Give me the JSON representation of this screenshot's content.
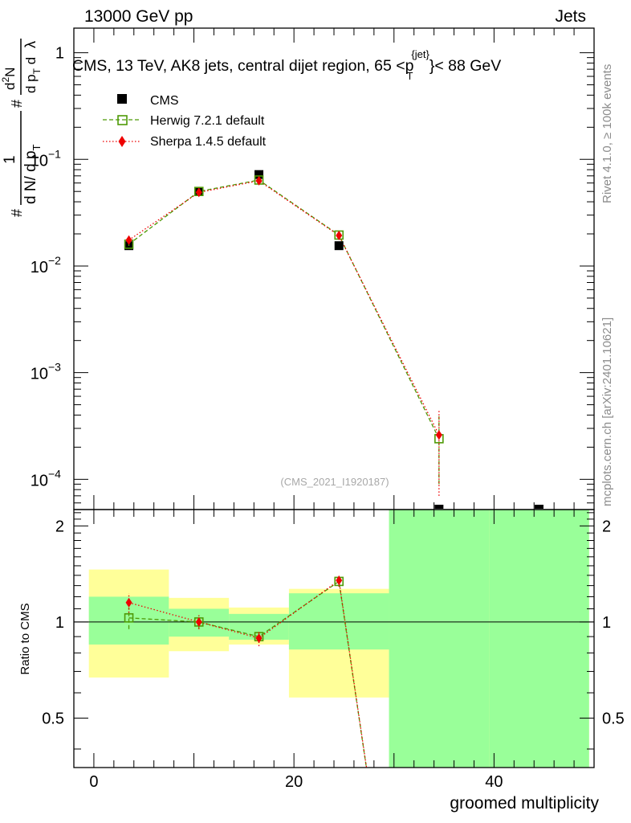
{
  "header": {
    "left": "13000 GeV pp",
    "right": "Jets"
  },
  "side_labels": {
    "top": "Rivet 4.1.0, ≥ 100k events",
    "bottom": "mcplots.cern.ch [arXiv:2401.10621]"
  },
  "colors": {
    "cms": "#000000",
    "herwig": "#4e9a06",
    "sherpa": "#ee0000",
    "band_inner": "#99ff99",
    "band_outer": "#ffff99"
  },
  "chart_data": {
    "type": "line",
    "title": "CMS, 13 TeV, AK8 jets, central dijet region, 65 <p",
    "title_sup": "{jet}",
    "title_sub": "T",
    "title_tail": "}< 88 GeV",
    "reference": "(CMS_2021_I1920187)",
    "ylabel_main": {
      "prefix": "#",
      "frac1_num": "1",
      "frac1_den": "d N/ d p",
      "frac1_den_sub": "T",
      "mid": "#",
      "frac2_num": "d",
      "frac2_num_sup": "2",
      "frac2_num_tail": "N",
      "frac2_den": "d p",
      "frac2_den_sub": "T",
      "frac2_den_tail": " d",
      "lambda": "λ"
    },
    "ylabel_ratio": "Ratio to CMS",
    "xlabel": "groomed multiplicity",
    "xlim": [
      -2,
      50
    ],
    "ylim_main": [
      5.2e-05,
      1.7
    ],
    "ylim_ratio": [
      0.35,
      2.25
    ],
    "y_ticks_main": [
      {
        "value": 1,
        "base": "1",
        "exp": ""
      },
      {
        "value": 0.1,
        "base": "10",
        "exp": "−1"
      },
      {
        "value": 0.01,
        "base": "10",
        "exp": "−2"
      },
      {
        "value": 0.001,
        "base": "10",
        "exp": "−3"
      },
      {
        "value": 0.0001,
        "base": "10",
        "exp": "−4"
      }
    ],
    "y_ticks_ratio": [
      {
        "value": 2,
        "label": "2"
      },
      {
        "value": 1,
        "label": "1"
      },
      {
        "value": 0.5,
        "label": "0.5"
      }
    ],
    "x_ticks": [
      {
        "value": 0,
        "label": "0"
      },
      {
        "value": 20,
        "label": "20"
      },
      {
        "value": 40,
        "label": "40"
      }
    ],
    "bins": [
      {
        "lo": -0.5,
        "hi": 7.5,
        "x": 3.5
      },
      {
        "lo": 7.5,
        "hi": 13.5,
        "x": 10.5
      },
      {
        "lo": 13.5,
        "hi": 19.5,
        "x": 16.5
      },
      {
        "lo": 19.5,
        "hi": 29.5,
        "x": 24.5
      },
      {
        "lo": 29.5,
        "hi": 39.5,
        "x": 34.5
      },
      {
        "lo": 39.5,
        "hi": 49.5,
        "x": 44.5
      }
    ],
    "series": [
      {
        "name": "CMS",
        "values": [
          0.0155,
          0.05,
          0.072,
          0.0155,
          5.2e-05,
          5.2e-05
        ]
      },
      {
        "name": "Herwig 7.2.1 default",
        "values": [
          0.016,
          0.05,
          0.064,
          0.0195,
          0.00024,
          null
        ],
        "err_lo": [
          0.0006,
          0.001,
          0.002,
          0.0007,
          0.00015,
          null
        ],
        "err_hi": [
          0.0006,
          0.001,
          0.002,
          0.0007,
          0.00015,
          null
        ],
        "ratio": [
          1.03,
          1.0,
          0.9,
          1.34,
          0.0,
          null
        ],
        "ratio_err": [
          0.08,
          0.05,
          0.04,
          0.04,
          0.0,
          null
        ]
      },
      {
        "name": "Sherpa 1.4.5 default",
        "values": [
          0.0175,
          0.049,
          0.063,
          0.0193,
          0.00026,
          null
        ],
        "err_lo": [
          0.0008,
          0.0012,
          0.002,
          0.0008,
          0.00019,
          null
        ],
        "err_hi": [
          0.0008,
          0.0012,
          0.002,
          0.0008,
          0.00019,
          null
        ],
        "ratio": [
          1.15,
          1.0,
          0.89,
          1.35,
          0.0,
          null
        ],
        "ratio_err": [
          0.08,
          0.05,
          0.05,
          0.06,
          0.0,
          null
        ]
      }
    ],
    "bands": {
      "inner": [
        [
          0.85,
          1.2
        ],
        [
          0.9,
          1.1
        ],
        [
          0.88,
          1.06
        ],
        [
          0.82,
          1.23
        ],
        [
          0.35,
          2.25
        ],
        [
          0.35,
          2.25
        ]
      ],
      "outer": [
        [
          0.67,
          1.46
        ],
        [
          0.81,
          1.19
        ],
        [
          0.85,
          1.11
        ],
        [
          0.58,
          1.27
        ],
        [
          0.35,
          2.25
        ],
        [
          0.35,
          2.25
        ]
      ]
    },
    "legend": [
      "CMS",
      "Herwig 7.2.1 default",
      "Sherpa 1.4.5 default"
    ]
  }
}
